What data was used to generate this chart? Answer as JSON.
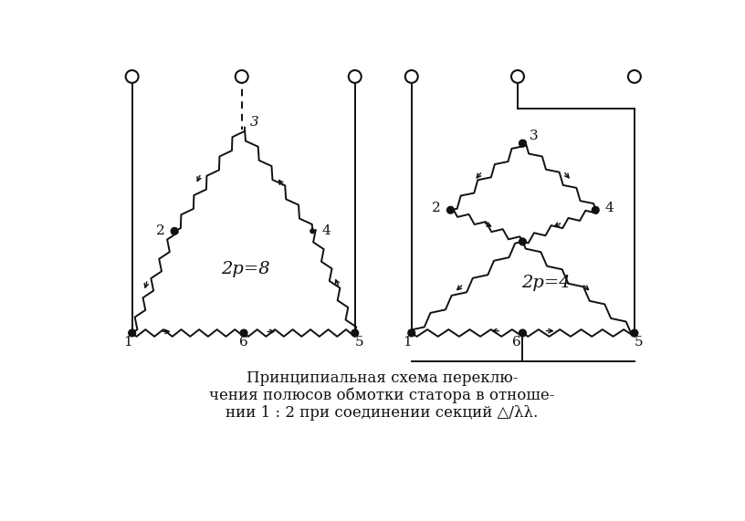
{
  "bg_color": "#ffffff",
  "line_color": "#111111",
  "title_line1": "Принципиальная схема переклю-",
  "title_line2": "чения полюсов обмотки статора в отноше-",
  "title_line3": "нии 1 : 2 при соединении секций △/λλ.",
  "caption_fontsize": 12,
  "lw": 1.4,
  "dot_r": 0.006,
  "term_r": 0.012
}
